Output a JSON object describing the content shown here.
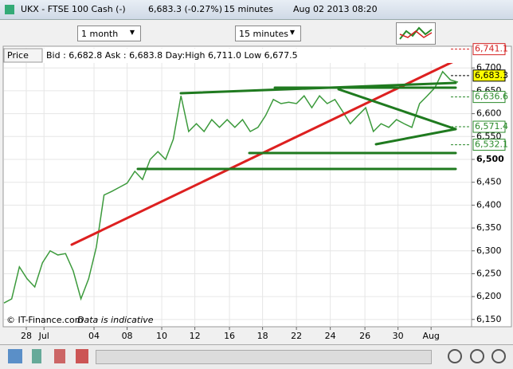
{
  "window": {
    "title": "UKX - FTSE 100 Cash (-)",
    "price": "6,683.3 (-0.27%)",
    "interval": "15 minutes",
    "datetime": "Aug 02 2013 08:20"
  },
  "toolbar": {
    "period": "1 month",
    "interval": "15 minutes"
  },
  "info": {
    "label": "Price",
    "quote": "Bid : 6,682.8 Ask : 6,683.8 Day:High 6,711.0 Low 6,677.5"
  },
  "footer_note": {
    "source": "© IT-Finance.com",
    "disclaimer": "Data is indicative"
  },
  "chart_data": {
    "type": "line",
    "color": "#3c9a3c",
    "values": [
      6186,
      6195,
      6265,
      6239,
      6221,
      6274,
      6300,
      6291,
      6294,
      6256,
      6195,
      6239,
      6308,
      6422,
      6430,
      6439,
      6448,
      6474,
      6456,
      6500,
      6517,
      6500,
      6544,
      6639,
      6561,
      6578,
      6561,
      6587,
      6570,
      6587,
      6570,
      6587,
      6561,
      6570,
      6596,
      6631,
      6622,
      6625,
      6622,
      6639,
      6613,
      6639,
      6622,
      6631,
      6605,
      6578,
      6596,
      6613,
      6561,
      6578,
      6570,
      6587,
      6578,
      6570,
      6622,
      6639,
      6657,
      6692,
      6674,
      6669
    ],
    "xlim": [
      0,
      59
    ],
    "xticks": [
      {
        "value": 2.9,
        "label": "28"
      },
      {
        "value": 5.2,
        "label": "Jul"
      },
      {
        "value": 11.7,
        "label": "04"
      },
      {
        "value": 16,
        "label": "08"
      },
      {
        "value": 20.5,
        "label": "10"
      },
      {
        "value": 24.8,
        "label": "12"
      },
      {
        "value": 29.3,
        "label": "16"
      },
      {
        "value": 33.6,
        "label": "18"
      },
      {
        "value": 38,
        "label": "22"
      },
      {
        "value": 42.4,
        "label": "24"
      },
      {
        "value": 46.9,
        "label": "26"
      },
      {
        "value": 51.2,
        "label": "30"
      },
      {
        "value": 55.5,
        "label": "Aug"
      }
    ],
    "ylim": [
      6134,
      6744
    ],
    "yticks": [
      {
        "value": 6150,
        "label": "6,150"
      },
      {
        "value": 6200,
        "label": "6,200"
      },
      {
        "value": 6250,
        "label": "6,250"
      },
      {
        "value": 6300,
        "label": "6,300"
      },
      {
        "value": 6350,
        "label": "6,350"
      },
      {
        "value": 6400,
        "label": "6,400"
      },
      {
        "value": 6450,
        "label": "6,450"
      },
      {
        "value": 6500,
        "label": "6,500"
      },
      {
        "value": 6550,
        "label": "6,550"
      },
      {
        "value": 6600,
        "label": "6,600"
      },
      {
        "value": 6650,
        "label": "6,650"
      },
      {
        "value": 6700,
        "label": "6,700"
      }
    ],
    "grid": true,
    "price_labels": [
      {
        "value": 6741.1,
        "label": "6,741.1",
        "color": "#d42020"
      },
      {
        "value": 6683.3,
        "label": "6,683.3",
        "color": "#000000"
      },
      {
        "value": 6636.6,
        "label": "6,636.6",
        "color": "#2a8a2a"
      },
      {
        "value": 6571.4,
        "label": "6,571.4",
        "color": "#2a8a2a"
      },
      {
        "value": 6532.1,
        "label": "6,532.1",
        "color": "#2a8a2a"
      }
    ]
  }
}
